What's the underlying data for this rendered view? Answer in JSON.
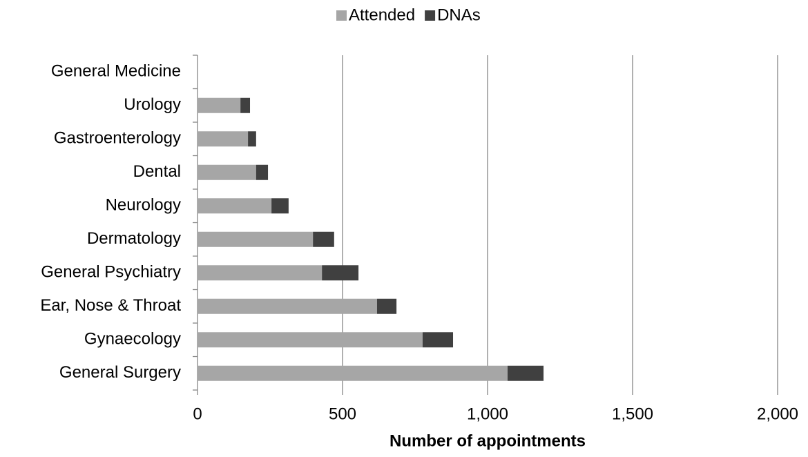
{
  "chart_data": {
    "type": "stacked-bar-horizontal",
    "x_label": "Number of appointments",
    "categories": [
      "General Medicine",
      "Urology",
      "Gastroenterology",
      "Dental",
      "Neurology",
      "Dermatology",
      "General Psychiatry",
      "Ear, Nose & Throat",
      "Gynaecology",
      "General Surgery"
    ],
    "series": [
      {
        "name": "Attended",
        "color": "#a6a6a6",
        "values": [
          0,
          148,
          174,
          202,
          255,
          398,
          429,
          619,
          776,
          1069
        ]
      },
      {
        "name": "DNAs",
        "color": "#404040",
        "values": [
          0,
          33,
          28,
          41,
          59,
          73,
          126,
          67,
          105,
          124
        ]
      }
    ],
    "xlim": [
      0,
      2000
    ],
    "xticks": [
      0,
      500,
      {
        "value": 1000,
        "label": "1,000"
      },
      {
        "value": 1500,
        "label": "1,500"
      },
      {
        "value": 2000,
        "label": "2,000"
      }
    ],
    "grid": true,
    "legend": "top"
  }
}
